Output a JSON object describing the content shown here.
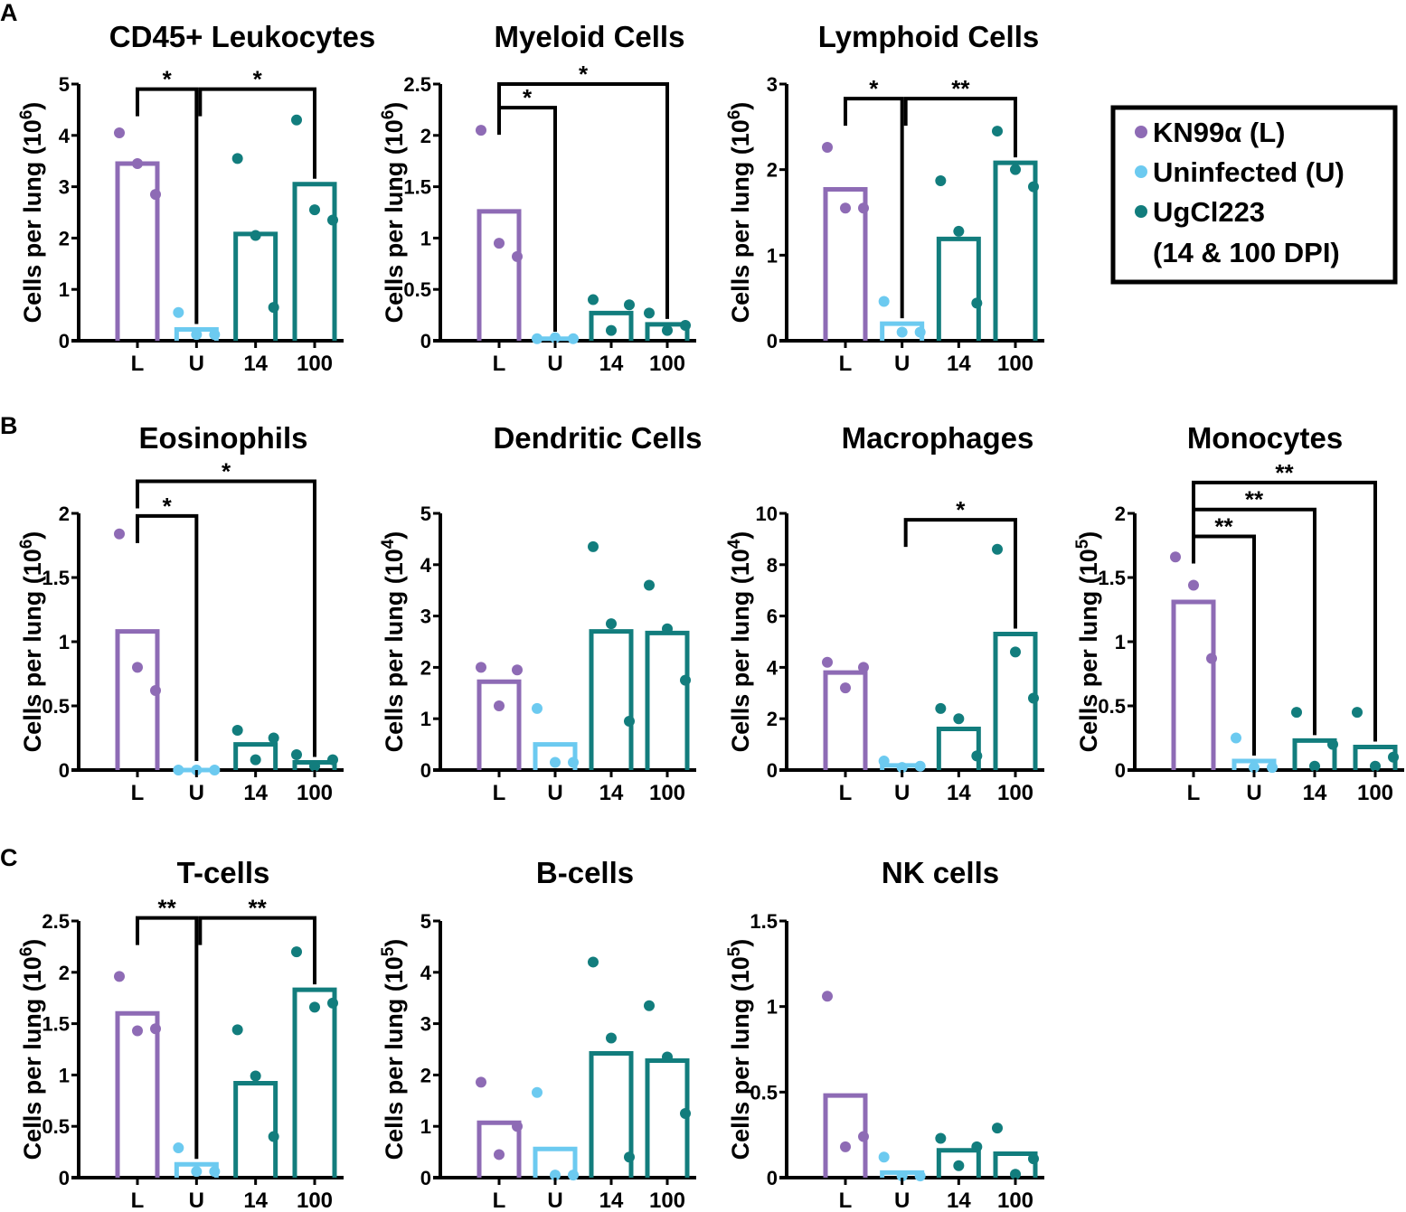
{
  "colors": {
    "L": "#8e6bb5",
    "U": "#6ccaf0",
    "T": "#127d7d",
    "axis": "#000000"
  },
  "panel_labels": [
    "A",
    "B",
    "C"
  ],
  "legend": {
    "entries": [
      {
        "label": "KN99α (L)",
        "color": "#8e6bb5"
      },
      {
        "label": "Uninfected (U)",
        "color": "#6ccaf0"
      },
      {
        "label": "UgCl223",
        "color": "#127d7d"
      }
    ],
    "extra_line": "(14 & 100 DPI)"
  },
  "chart_data": [
    {
      "type": "bar",
      "title": "CD45+ Leukocytes",
      "ylabel_base": "Cells per lung (10",
      "ylabel_exp": "6",
      "ylabel_close": ")",
      "categories": [
        "L",
        "U",
        "14",
        "100"
      ],
      "ylim": [
        0,
        5
      ],
      "yticks": [
        {
          "v": 0,
          "t": "0"
        },
        {
          "v": 1,
          "t": "1"
        },
        {
          "v": 2,
          "t": "2"
        },
        {
          "v": 3,
          "t": "3"
        },
        {
          "v": 4,
          "t": "4"
        },
        {
          "v": 5,
          "t": "5"
        }
      ],
      "values": [
        3.45,
        0.22,
        2.08,
        3.05
      ],
      "points": [
        [
          4.05,
          3.45,
          2.85
        ],
        [
          0.55,
          0.12,
          0.12
        ],
        [
          3.55,
          2.05,
          0.65
        ],
        [
          4.3,
          2.55,
          2.35
        ]
      ],
      "sig": [
        {
          "from": 0,
          "to": 1,
          "y": 4.9,
          "label": "*"
        },
        {
          "from": 1,
          "to": 3,
          "y": 4.9,
          "label": "*"
        }
      ]
    },
    {
      "type": "bar",
      "title": "Myeloid Cells",
      "ylabel_base": "Cells per lung (10",
      "ylabel_exp": "6",
      "ylabel_close": ")",
      "categories": [
        "L",
        "U",
        "14",
        "100"
      ],
      "ylim": [
        0,
        2.5
      ],
      "yticks": [
        {
          "v": 0,
          "t": "0"
        },
        {
          "v": 0.5,
          "t": "0.5"
        },
        {
          "v": 1,
          "t": "1"
        },
        {
          "v": 1.5,
          "t": "1.5"
        },
        {
          "v": 2,
          "t": "2"
        },
        {
          "v": 2.5,
          "t": "2.5"
        }
      ],
      "values": [
        1.26,
        0.02,
        0.27,
        0.16
      ],
      "points": [
        [
          2.05,
          0.95,
          0.82
        ],
        [
          0.02,
          0.03,
          0.02
        ],
        [
          0.4,
          0.1,
          0.35
        ],
        [
          0.27,
          0.1,
          0.15
        ]
      ],
      "sig": [
        {
          "from": 0,
          "to": 1,
          "y": 2.27,
          "label": "*"
        },
        {
          "from": 0,
          "to": 3,
          "y": 2.5,
          "label": "*"
        }
      ]
    },
    {
      "type": "bar",
      "title": "Lymphoid Cells",
      "ylabel_base": "Cells per lung (10",
      "ylabel_exp": "6",
      "ylabel_close": ")",
      "categories": [
        "L",
        "U",
        "14",
        "100"
      ],
      "ylim": [
        0,
        3
      ],
      "yticks": [
        {
          "v": 0,
          "t": "0"
        },
        {
          "v": 1,
          "t": "1"
        },
        {
          "v": 2,
          "t": "2"
        },
        {
          "v": 3,
          "t": "3"
        }
      ],
      "values": [
        1.77,
        0.2,
        1.19,
        2.08
      ],
      "points": [
        [
          2.26,
          1.55,
          1.55
        ],
        [
          0.46,
          0.1,
          0.1
        ],
        [
          1.87,
          1.28,
          0.44
        ],
        [
          2.45,
          2.0,
          1.8
        ]
      ],
      "sig": [
        {
          "from": 0,
          "to": 1,
          "y": 2.83,
          "label": "*"
        },
        {
          "from": 1,
          "to": 3,
          "y": 2.83,
          "label": "**"
        }
      ]
    },
    {
      "type": "bar",
      "title": "Eosinophils",
      "ylabel_base": "Cells per lung (10",
      "ylabel_exp": "6",
      "ylabel_close": ")",
      "categories": [
        "L",
        "U",
        "14",
        "100"
      ],
      "ylim": [
        0,
        2
      ],
      "yticks": [
        {
          "v": 0,
          "t": "0"
        },
        {
          "v": 0.5,
          "t": "0.5"
        },
        {
          "v": 1,
          "t": "1"
        },
        {
          "v": 1.5,
          "t": "1.5"
        },
        {
          "v": 2,
          "t": "2"
        }
      ],
      "values": [
        1.08,
        0.0,
        0.2,
        0.06
      ],
      "points": [
        [
          1.84,
          0.8,
          0.62
        ],
        [
          0.0,
          0.0,
          0.0
        ],
        [
          0.31,
          0.08,
          0.25
        ],
        [
          0.12,
          0.03,
          0.08
        ]
      ],
      "sig": [
        {
          "from": 0,
          "to": 1,
          "y": 1.98,
          "label": "*"
        },
        {
          "from": 0,
          "to": 3,
          "y": 2.25,
          "label": "*"
        }
      ]
    },
    {
      "type": "bar",
      "title": "Dendritic Cells",
      "ylabel_base": "Cells per lung (10",
      "ylabel_exp": "4",
      "ylabel_close": ")",
      "categories": [
        "L",
        "U",
        "14",
        "100"
      ],
      "ylim": [
        0,
        5
      ],
      "yticks": [
        {
          "v": 0,
          "t": "0"
        },
        {
          "v": 1,
          "t": "1"
        },
        {
          "v": 2,
          "t": "2"
        },
        {
          "v": 3,
          "t": "3"
        },
        {
          "v": 4,
          "t": "4"
        },
        {
          "v": 5,
          "t": "5"
        }
      ],
      "values": [
        1.72,
        0.5,
        2.7,
        2.67
      ],
      "points": [
        [
          2.0,
          1.25,
          1.95
        ],
        [
          1.2,
          0.15,
          0.15
        ],
        [
          4.35,
          2.85,
          0.95
        ],
        [
          3.6,
          2.75,
          1.75
        ]
      ],
      "sig": []
    },
    {
      "type": "bar",
      "title": "Macrophages",
      "ylabel_base": "Cells per lung (10",
      "ylabel_exp": "4",
      "ylabel_close": ")",
      "categories": [
        "L",
        "U",
        "14",
        "100"
      ],
      "ylim": [
        0,
        10
      ],
      "yticks": [
        {
          "v": 0,
          "t": "0"
        },
        {
          "v": 2,
          "t": "2"
        },
        {
          "v": 4,
          "t": "4"
        },
        {
          "v": 6,
          "t": "6"
        },
        {
          "v": 8,
          "t": "8"
        },
        {
          "v": 10,
          "t": "10"
        }
      ],
      "values": [
        3.8,
        0.18,
        1.6,
        5.3
      ],
      "points": [
        [
          4.2,
          3.2,
          4.0
        ],
        [
          0.35,
          0.1,
          0.15
        ],
        [
          2.4,
          2.0,
          0.55
        ],
        [
          8.6,
          4.6,
          2.8
        ]
      ],
      "sig": [
        {
          "from": 1,
          "to": 3,
          "y": 9.75,
          "label": "*"
        }
      ]
    },
    {
      "type": "bar",
      "title": "Monocytes",
      "ylabel_base": "Cells per lung (10",
      "ylabel_exp": "5",
      "ylabel_close": ")",
      "categories": [
        "L",
        "U",
        "14",
        "100"
      ],
      "ylim": [
        0,
        2
      ],
      "yticks": [
        {
          "v": 0,
          "t": "0"
        },
        {
          "v": 0.5,
          "t": "0.5"
        },
        {
          "v": 1,
          "t": "1"
        },
        {
          "v": 1.5,
          "t": "1.5"
        },
        {
          "v": 2,
          "t": "2"
        }
      ],
      "values": [
        1.31,
        0.07,
        0.23,
        0.18
      ],
      "points": [
        [
          1.66,
          1.44,
          0.87
        ],
        [
          0.25,
          0.02,
          0.02
        ],
        [
          0.45,
          0.03,
          0.2
        ],
        [
          0.45,
          0.03,
          0.1
        ]
      ],
      "sig": [
        {
          "from": 0,
          "to": 1,
          "y": 1.82,
          "label": "**"
        },
        {
          "from": 0,
          "to": 2,
          "y": 2.03,
          "label": "**"
        },
        {
          "from": 0,
          "to": 3,
          "y": 2.24,
          "label": "**"
        }
      ]
    },
    {
      "type": "bar",
      "title": "T-cells",
      "ylabel_base": "Cells per lung (10",
      "ylabel_exp": "6",
      "ylabel_close": ")",
      "categories": [
        "L",
        "U",
        "14",
        "100"
      ],
      "ylim": [
        0,
        2.5
      ],
      "yticks": [
        {
          "v": 0,
          "t": "0"
        },
        {
          "v": 0.5,
          "t": "0.5"
        },
        {
          "v": 1,
          "t": "1"
        },
        {
          "v": 1.5,
          "t": "1.5"
        },
        {
          "v": 2,
          "t": "2"
        },
        {
          "v": 2.5,
          "t": "2.5"
        }
      ],
      "values": [
        1.6,
        0.13,
        0.92,
        1.83
      ],
      "points": [
        [
          1.96,
          1.43,
          1.45
        ],
        [
          0.29,
          0.06,
          0.06
        ],
        [
          1.44,
          0.99,
          0.4
        ],
        [
          2.2,
          1.66,
          1.7
        ]
      ],
      "sig": [
        {
          "from": 0,
          "to": 1,
          "y": 2.53,
          "label": "**"
        },
        {
          "from": 1,
          "to": 3,
          "y": 2.53,
          "label": "**"
        }
      ]
    },
    {
      "type": "bar",
      "title": "B-cells",
      "ylabel_base": "Cells per lung (10",
      "ylabel_exp": "5",
      "ylabel_close": ")",
      "categories": [
        "L",
        "U",
        "14",
        "100"
      ],
      "ylim": [
        0,
        5
      ],
      "yticks": [
        {
          "v": 0,
          "t": "0"
        },
        {
          "v": 1,
          "t": "1"
        },
        {
          "v": 2,
          "t": "2"
        },
        {
          "v": 3,
          "t": "3"
        },
        {
          "v": 4,
          "t": "4"
        },
        {
          "v": 5,
          "t": "5"
        }
      ],
      "values": [
        1.07,
        0.56,
        2.42,
        2.28
      ],
      "points": [
        [
          1.86,
          0.45,
          1.0
        ],
        [
          1.66,
          0.05,
          0.05
        ],
        [
          4.2,
          2.72,
          0.4
        ],
        [
          3.35,
          2.35,
          1.25
        ]
      ],
      "sig": []
    },
    {
      "type": "bar",
      "title": "NK cells",
      "ylabel_base": "Cells per lung (10",
      "ylabel_exp": "5",
      "ylabel_close": ")",
      "categories": [
        "L",
        "U",
        "14",
        "100"
      ],
      "ylim": [
        0,
        1.5
      ],
      "yticks": [
        {
          "v": 0,
          "t": "0"
        },
        {
          "v": 0.5,
          "t": "0.5"
        },
        {
          "v": 1,
          "t": "1"
        },
        {
          "v": 1.5,
          "t": "1.5"
        }
      ],
      "values": [
        0.48,
        0.03,
        0.16,
        0.14
      ],
      "points": [
        [
          1.06,
          0.18,
          0.24
        ],
        [
          0.12,
          0.01,
          0.01
        ],
        [
          0.23,
          0.07,
          0.18
        ],
        [
          0.29,
          0.02,
          0.11
        ]
      ],
      "sig": []
    }
  ]
}
